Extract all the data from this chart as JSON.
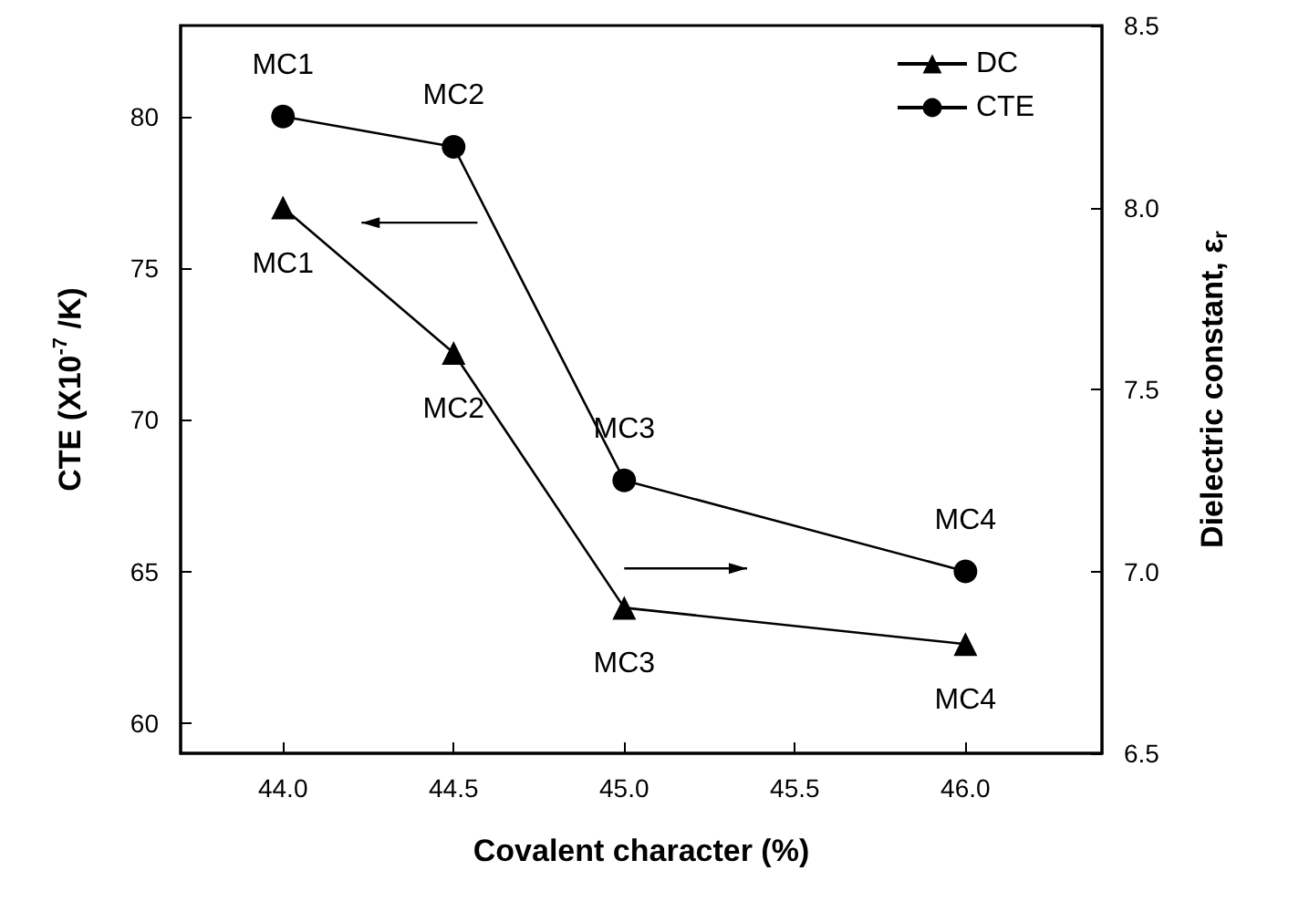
{
  "chart_data": {
    "type": "line",
    "xlabel": "Covalent character (%)",
    "ylabel": "CTE (X10$^{-7}$ /K)",
    "y2label": "Dielectric constant, ε$_{r}$",
    "x": [
      44.0,
      44.5,
      45.0,
      46.0
    ],
    "series": [
      {
        "name": "DC",
        "color": "#000000",
        "axis": "y2",
        "marker": "triangle",
        "values": [
          8.0,
          7.6,
          6.9,
          6.8
        ]
      },
      {
        "name": "CTE",
        "color": "#000000",
        "marker": "circle",
        "values": [
          80,
          79,
          68,
          65
        ]
      }
    ],
    "xlim": [
      43.7,
      46.4
    ],
    "xticks": [
      {
        "value": 44,
        "label": "44.0"
      },
      {
        "value": 44.5,
        "label": "44.5"
      },
      {
        "value": 45,
        "label": "45.0"
      },
      {
        "value": 45.5,
        "label": "45.5"
      },
      {
        "value": 46,
        "label": "46.0"
      }
    ],
    "ylim": [
      59,
      83
    ],
    "yticks": [
      60,
      65,
      70,
      75,
      80
    ],
    "y2lim": [
      6.5,
      8.5
    ],
    "y2ticks": [
      {
        "value": 6.5,
        "label": "6.5"
      },
      {
        "value": 7,
        "label": "7.0"
      },
      {
        "value": 7.5,
        "label": "7.5"
      },
      {
        "value": 8,
        "label": "8.0"
      },
      {
        "value": 8.5,
        "label": "8.5"
      }
    ],
    "annotations": [
      {
        "text": "MC1",
        "x": 44.0,
        "y": 80
      },
      {
        "text": "MC2",
        "x": 44.5,
        "y": 79
      },
      {
        "text": "MC3",
        "x": 45.0,
        "y": 68
      },
      {
        "text": "MC4",
        "x": 46.0,
        "y": 65
      },
      {
        "text": "MC1",
        "x": 44.0,
        "y": 77
      },
      {
        "text": "MC2",
        "x": 44.5,
        "y": 72.2
      },
      {
        "text": "MC3",
        "x": 45.0,
        "y": 63.8
      },
      {
        "text": "MC4",
        "x": 46.0,
        "y": 62.6
      }
    ],
    "grid": false,
    "legend": "top right"
  }
}
